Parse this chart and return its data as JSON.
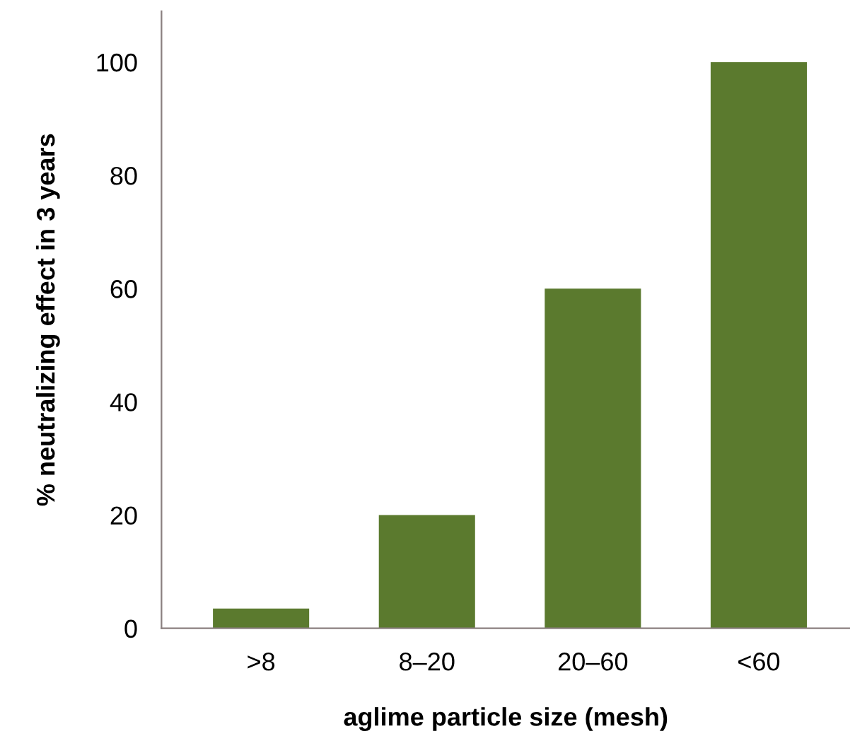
{
  "chart_data": {
    "type": "bar",
    "categories": [
      ">8",
      "8–20",
      "20–60",
      "<60"
    ],
    "values": [
      3.5,
      20,
      60,
      100
    ],
    "color": "#5b7a2e",
    "ylabel": "% neutralizing effect in 3 years",
    "xlabel": "aglime particle size (mesh)",
    "ylim": [
      0,
      109
    ],
    "yticks": [
      0,
      20,
      40,
      60,
      80,
      100
    ],
    "grid": false,
    "legend": false
  }
}
